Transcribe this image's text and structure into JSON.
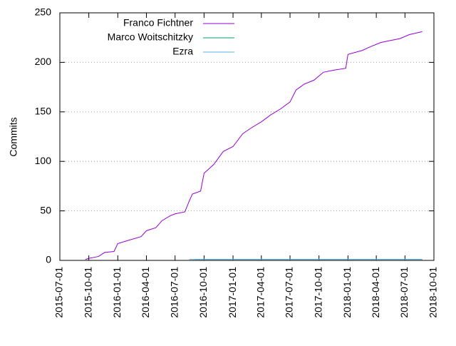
{
  "chart_data": {
    "type": "line",
    "y_label": "Commits",
    "xlim": [
      "2015-07-01",
      "2018-10-01"
    ],
    "xticks": [
      "2015-07-01",
      "2015-10-01",
      "2016-01-01",
      "2016-04-01",
      "2016-07-01",
      "2016-10-01",
      "2017-01-01",
      "2017-04-01",
      "2017-07-01",
      "2017-10-01",
      "2018-01-01",
      "2018-04-01",
      "2018-07-01",
      "2018-10-01"
    ],
    "ylim": [
      0,
      250
    ],
    "yticks": [
      0,
      50,
      100,
      150,
      200,
      250
    ],
    "grid": true,
    "legend": "top-left",
    "series": [
      {
        "name": "Franco Fichtner",
        "color": "#9400d3",
        "x": [
          "2015-09-20",
          "2015-10-01",
          "2015-11-01",
          "2015-11-20",
          "2015-12-20",
          "2016-01-01",
          "2016-02-01",
          "2016-03-15",
          "2016-04-01",
          "2016-05-01",
          "2016-05-20",
          "2016-06-15",
          "2016-07-01",
          "2016-08-01",
          "2016-08-15",
          "2016-08-25",
          "2016-09-20",
          "2016-10-01",
          "2016-11-01",
          "2016-12-01",
          "2017-01-01",
          "2017-02-01",
          "2017-03-01",
          "2017-04-01",
          "2017-05-01",
          "2017-06-01",
          "2017-07-01",
          "2017-07-20",
          "2017-08-15",
          "2017-09-15",
          "2017-10-15",
          "2017-11-15",
          "2017-12-25",
          "2018-01-01",
          "2018-02-15",
          "2018-03-15",
          "2018-04-15",
          "2018-05-15",
          "2018-06-15",
          "2018-07-15",
          "2018-08-25"
        ],
        "values": [
          1,
          2,
          4,
          8,
          9,
          17,
          20,
          24,
          30,
          33,
          40,
          45,
          47,
          49,
          60,
          67,
          70,
          88,
          97,
          110,
          115,
          128,
          134,
          140,
          147,
          153,
          160,
          172,
          178,
          182,
          190,
          192,
          194,
          208,
          212,
          216,
          220,
          222,
          224,
          228,
          231
        ]
      },
      {
        "name": "Marco Woitschitzky",
        "color": "#009e73",
        "x": [
          "2016-09-01",
          "2018-08-25"
        ],
        "values": [
          1,
          1
        ]
      },
      {
        "name": "Ezra",
        "color": "#56b4e9",
        "x": [
          "2016-08-15",
          "2018-08-25"
        ],
        "values": [
          1,
          1
        ]
      }
    ]
  }
}
